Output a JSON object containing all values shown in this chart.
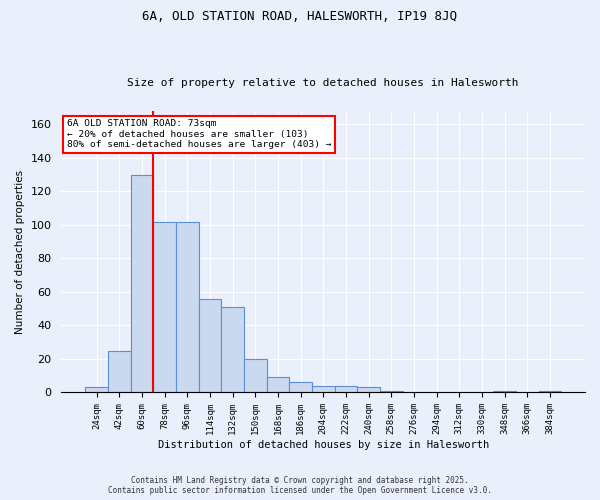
{
  "title1": "6A, OLD STATION ROAD, HALESWORTH, IP19 8JQ",
  "title2": "Size of property relative to detached houses in Halesworth",
  "xlabel": "Distribution of detached houses by size in Halesworth",
  "ylabel": "Number of detached properties",
  "bar_color": "#c9d9f0",
  "bar_edge_color": "#5b8dd9",
  "categories": [
    "24sqm",
    "42sqm",
    "60sqm",
    "78sqm",
    "96sqm",
    "114sqm",
    "132sqm",
    "150sqm",
    "168sqm",
    "186sqm",
    "204sqm",
    "222sqm",
    "240sqm",
    "258sqm",
    "276sqm",
    "294sqm",
    "312sqm",
    "330sqm",
    "348sqm",
    "366sqm",
    "384sqm"
  ],
  "values": [
    3,
    25,
    130,
    102,
    102,
    56,
    51,
    20,
    9,
    6,
    4,
    4,
    3,
    1,
    0,
    0,
    0,
    0,
    1,
    0,
    1
  ],
  "red_line_index": 2,
  "annotation_text": "6A OLD STATION ROAD: 73sqm\n← 20% of detached houses are smaller (103)\n80% of semi-detached houses are larger (403) →",
  "annotation_box_color": "white",
  "annotation_box_edge": "red",
  "ylim": [
    0,
    168
  ],
  "yticks": [
    0,
    20,
    40,
    60,
    80,
    100,
    120,
    140,
    160
  ],
  "footer1": "Contains HM Land Registry data © Crown copyright and database right 2025.",
  "footer2": "Contains public sector information licensed under the Open Government Licence v3.0.",
  "background_color": "#eaf0fb",
  "grid_color": "white"
}
